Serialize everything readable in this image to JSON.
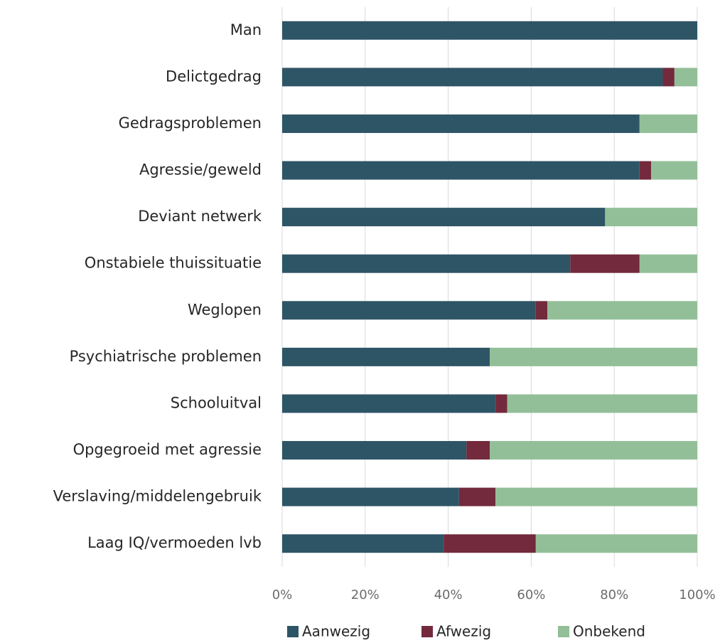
{
  "chart_data": {
    "type": "stacked_barh",
    "categories": [
      "Man",
      "Delictgedrag",
      "Gedragsproblemen",
      "Agressie/geweld",
      "Deviant netwerk",
      "Onstabiele thuissituatie",
      "Weglopen",
      "Psychiatrische problemen",
      "Schooluitval",
      "Opgegroeid met agressie",
      "Verslaving/middelengebruik",
      "Laag IQ/vermoeden lvb"
    ],
    "series": [
      {
        "name": "Aanwezig",
        "color": "#2e5566",
        "values": [
          100,
          91.7,
          86.1,
          86.1,
          77.8,
          69.4,
          61.1,
          50,
          51.4,
          44.4,
          42.6,
          38.9
        ]
      },
      {
        "name": "Afwezig",
        "color": "#722a3c",
        "values": [
          0,
          2.8,
          0,
          2.8,
          0,
          16.7,
          2.8,
          0,
          2.8,
          5.6,
          8.8,
          22.2
        ]
      },
      {
        "name": "Onbekend",
        "color": "#93bf98",
        "values": [
          0,
          5.5,
          13.9,
          11.1,
          22.2,
          13.9,
          36.1,
          50,
          45.8,
          50,
          48.6,
          38.9
        ]
      }
    ],
    "xlim": [
      0,
      100
    ],
    "xticks": [
      {
        "value": 0,
        "label": "0%"
      },
      {
        "value": 20,
        "label": "20%"
      },
      {
        "value": 40,
        "label": "40%"
      },
      {
        "value": 60,
        "label": "60%"
      },
      {
        "value": 80,
        "label": "80%"
      },
      {
        "value": 100,
        "label": "100%"
      }
    ],
    "grid": true,
    "legend": "bottom"
  }
}
